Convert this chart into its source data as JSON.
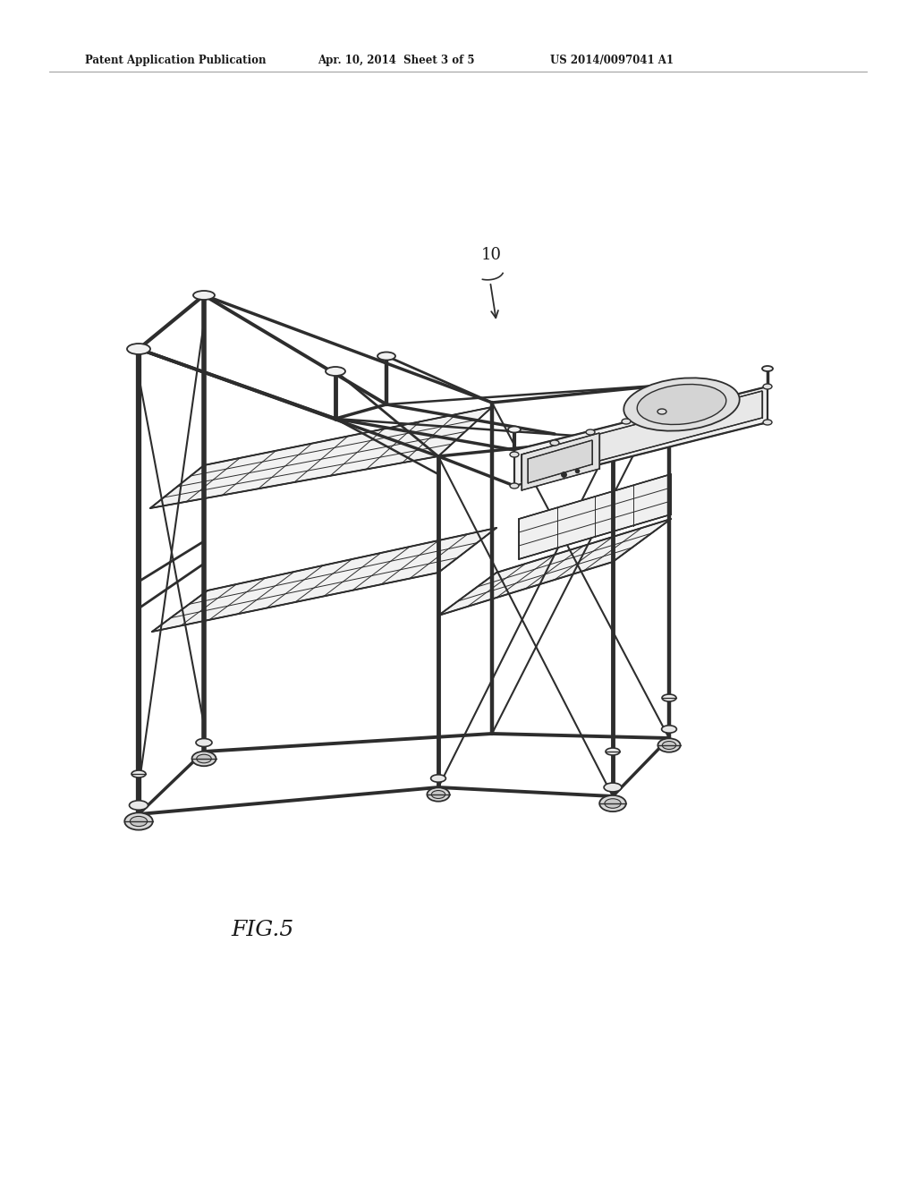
{
  "background_color": "#ffffff",
  "header_text": "Patent Application Publication",
  "header_date": "Apr. 10, 2014  Sheet 3 of 5",
  "header_patent": "US 2014/0097041 A1",
  "figure_label": "FIG.5",
  "reference_num": "10",
  "line_color": "#2d2d2d",
  "fig_width": 10.24,
  "fig_height": 13.2,
  "dpi": 100
}
